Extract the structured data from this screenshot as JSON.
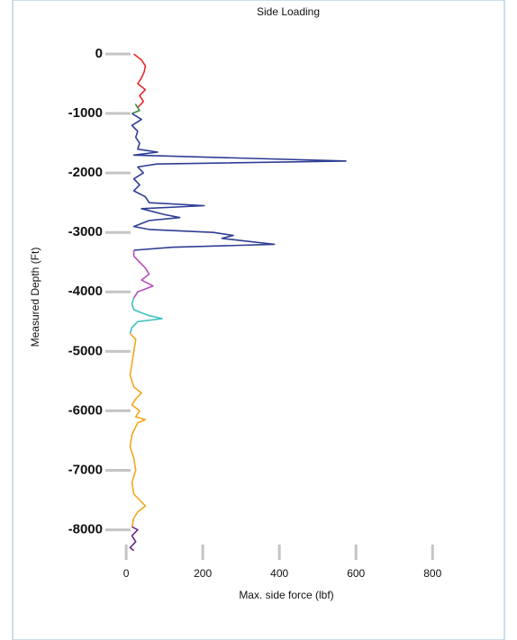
{
  "chart_data": {
    "type": "line",
    "title": "Side Loading",
    "x_label": "Max. side force (lbf)",
    "y_label": "Measured Depth (Ft)",
    "xlim": [
      -12,
      870
    ],
    "xticks": [
      0,
      200,
      400,
      600,
      800
    ],
    "ylim": [
      -8400,
      30
    ],
    "yticks": [
      0,
      -1000,
      -2000,
      -3000,
      -4000,
      -5000,
      -6000,
      -7000,
      -8000
    ],
    "series": [
      {
        "color": "#e8282a",
        "x": [
          20,
          40,
          50,
          47,
          40,
          30,
          50,
          35,
          45,
          30
        ],
        "y": [
          0,
          -100,
          -200,
          -300,
          -400,
          -500,
          -600,
          -700,
          -800,
          -900
        ]
      },
      {
        "color": "#3c8c3c",
        "x": [
          30,
          25,
          35,
          15
        ],
        "y": [
          -900,
          -850,
          -950,
          -1000
        ]
      },
      {
        "color": "#2e3e94",
        "x": [
          15,
          40,
          15,
          30,
          25,
          35,
          30,
          82,
          20,
          574,
          80,
          30,
          45,
          20,
          35,
          20,
          50,
          60,
          204,
          40,
          100,
          140,
          60,
          20,
          60,
          227,
          280,
          250,
          387,
          120,
          20
        ],
        "y": [
          -1000,
          -1100,
          -1200,
          -1300,
          -1400,
          -1500,
          -1600,
          -1650,
          -1700,
          -1800,
          -1850,
          -1900,
          -2000,
          -2100,
          -2200,
          -2300,
          -2400,
          -2500,
          -2550,
          -2600,
          -2700,
          -2750,
          -2800,
          -2900,
          -2950,
          -3000,
          -3050,
          -3100,
          -3200,
          -3250,
          -3300
        ]
      },
      {
        "color": "#b34fb8",
        "x": [
          20,
          20,
          35,
          50,
          60,
          40,
          70,
          30,
          20
        ],
        "y": [
          -3300,
          -3400,
          -3500,
          -3600,
          -3700,
          -3800,
          -3900,
          -4000,
          -4100
        ]
      },
      {
        "color": "#3fc1c0",
        "x": [
          20,
          15,
          20,
          60,
          94,
          30,
          15,
          10
        ],
        "y": [
          -4100,
          -4200,
          -4300,
          -4400,
          -4450,
          -4500,
          -4600,
          -4700
        ]
      },
      {
        "color": "#f2a71e",
        "x": [
          10,
          25,
          20,
          15,
          10,
          20,
          40,
          25,
          15,
          35,
          25,
          50,
          30,
          15,
          10,
          20,
          25,
          15,
          20,
          35,
          50,
          30,
          20,
          15
        ],
        "y": [
          -4700,
          -4800,
          -5000,
          -5200,
          -5400,
          -5600,
          -5700,
          -5800,
          -5900,
          -6000,
          -6100,
          -6150,
          -6200,
          -6400,
          -6600,
          -6800,
          -7000,
          -7200,
          -7400,
          -7500,
          -7600,
          -7700,
          -7800,
          -7950
        ]
      },
      {
        "color": "#6a2a8a",
        "x": [
          15,
          30,
          15,
          25,
          10,
          20
        ],
        "y": [
          -7950,
          -8000,
          -8100,
          -8200,
          -8300,
          -8350
        ]
      }
    ]
  }
}
